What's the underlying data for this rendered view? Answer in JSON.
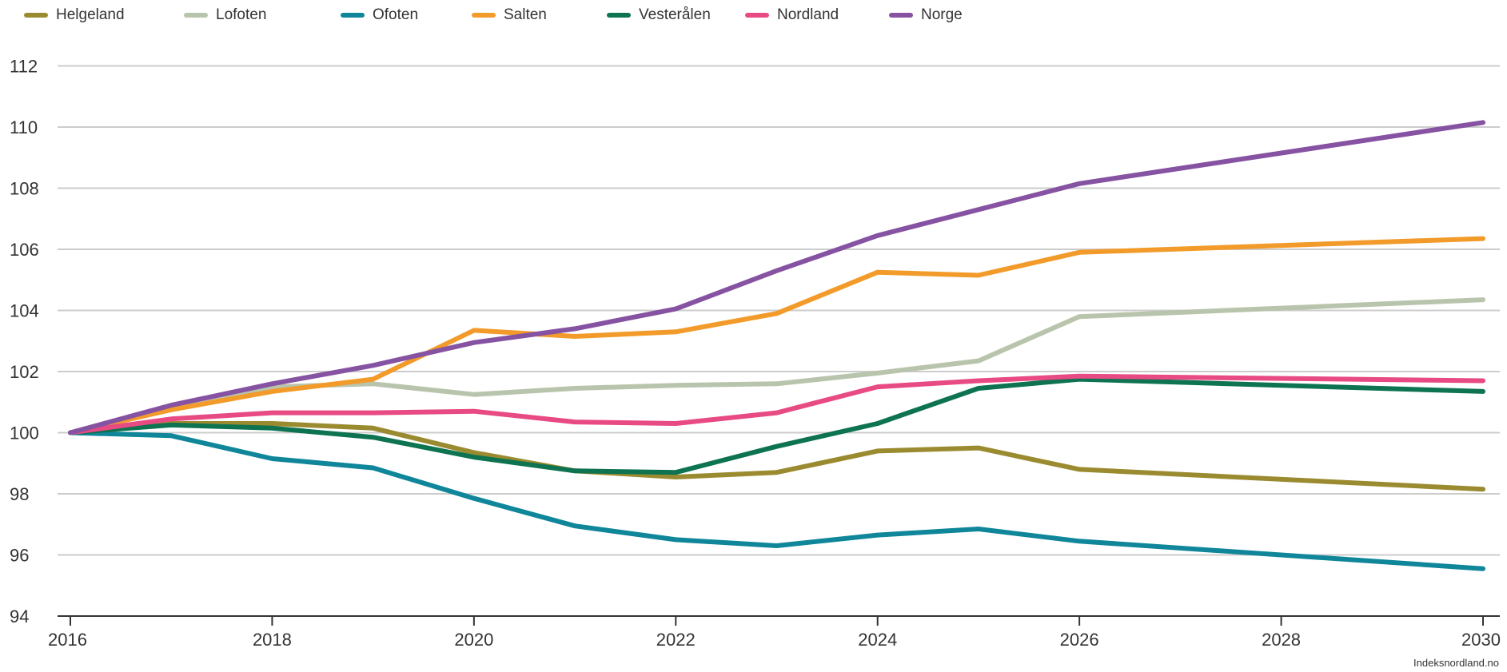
{
  "source_text": "Indeksnordland.no",
  "chart_data": {
    "type": "line",
    "title": "",
    "xlabel": "",
    "ylabel": "",
    "x": [
      2016,
      2017,
      2018,
      2019,
      2020,
      2021,
      2022,
      2023,
      2024,
      2025,
      2026,
      2030
    ],
    "xlim": [
      2016,
      2030
    ],
    "ylim": [
      94,
      113
    ],
    "x_ticks": [
      "2016",
      "2018",
      "2020",
      "2022",
      "2024",
      "2026",
      "2028",
      "2030"
    ],
    "y_ticks": [
      "94",
      "96",
      "98",
      "100",
      "102",
      "104",
      "106",
      "108",
      "110",
      "112"
    ],
    "grid": true,
    "legend_position": "top-left",
    "series": [
      {
        "name": "Helgeland",
        "color": "#9b8b30",
        "values": [
          100.0,
          100.3,
          100.3,
          100.15,
          99.35,
          98.75,
          98.55,
          98.7,
          99.4,
          99.5,
          98.8,
          98.15
        ]
      },
      {
        "name": "Lofoten",
        "color": "#b9c4ac",
        "values": [
          100.0,
          100.8,
          101.5,
          101.6,
          101.25,
          101.45,
          101.55,
          101.6,
          101.95,
          102.35,
          103.8,
          104.35
        ]
      },
      {
        "name": "Ofoten",
        "color": "#0f869a",
        "values": [
          100.0,
          99.9,
          99.15,
          98.85,
          97.85,
          96.95,
          96.5,
          96.3,
          96.65,
          96.85,
          96.45,
          95.55
        ]
      },
      {
        "name": "Salten",
        "color": "#f29b2a",
        "values": [
          100.0,
          100.75,
          101.35,
          101.75,
          103.35,
          103.15,
          103.3,
          103.9,
          105.25,
          105.15,
          105.9,
          106.35
        ]
      },
      {
        "name": "Vesterålen",
        "color": "#0d7350",
        "values": [
          100.0,
          100.25,
          100.15,
          99.85,
          99.2,
          98.75,
          98.7,
          99.55,
          100.3,
          101.45,
          101.75,
          101.35
        ]
      },
      {
        "name": "Nordland",
        "color": "#e84a84",
        "values": [
          100.0,
          100.45,
          100.65,
          100.65,
          100.7,
          100.35,
          100.3,
          100.65,
          101.5,
          101.7,
          101.85,
          101.7
        ]
      },
      {
        "name": "Norge",
        "color": "#8652a2",
        "values": [
          100.0,
          100.9,
          101.6,
          102.2,
          102.95,
          103.4,
          104.05,
          105.3,
          106.45,
          107.3,
          108.15,
          110.15
        ]
      }
    ]
  }
}
